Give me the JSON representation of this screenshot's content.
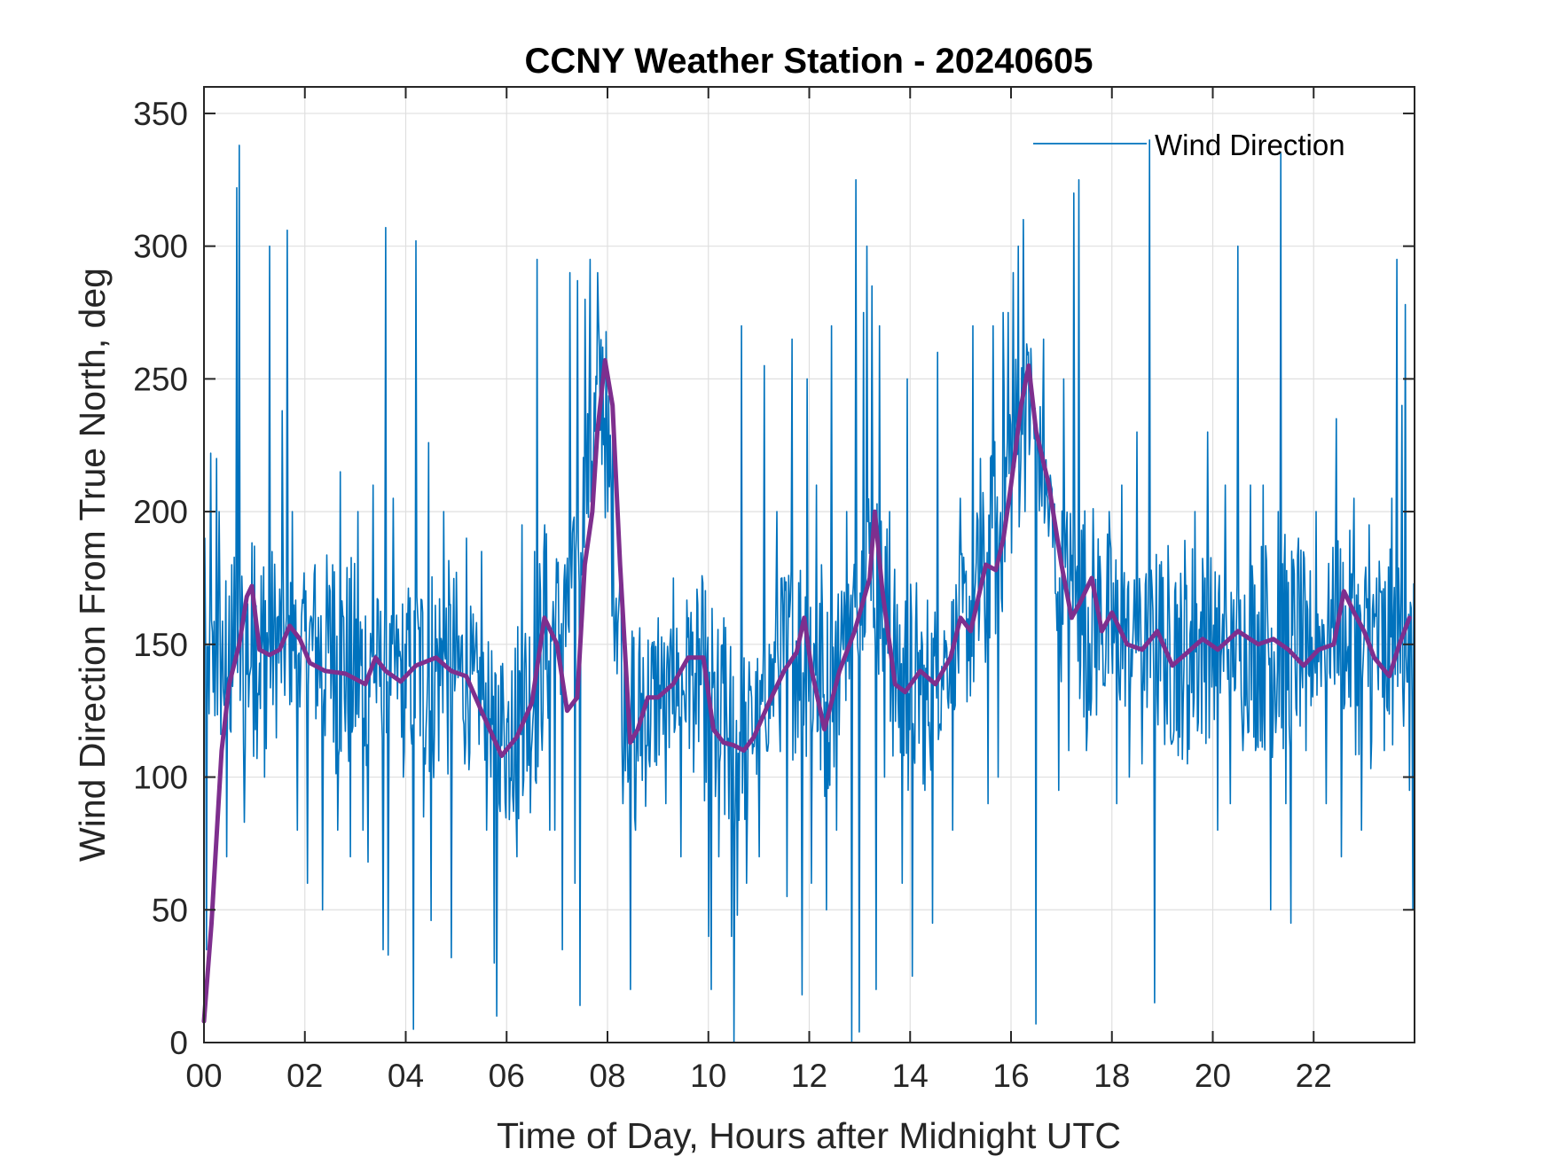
{
  "chart_data": {
    "type": "line",
    "title": "CCNY Weather Station - 20240605",
    "xlabel": "Time of Day, Hours after Midnight UTC",
    "ylabel": "Wind Direction From True North, deg",
    "xlim": [
      0,
      24
    ],
    "ylim": [
      0,
      360
    ],
    "xticks": [
      0,
      2,
      4,
      6,
      8,
      10,
      12,
      14,
      16,
      18,
      20,
      22
    ],
    "xtick_labels": [
      "00",
      "02",
      "04",
      "06",
      "08",
      "10",
      "12",
      "14",
      "16",
      "18",
      "20",
      "22"
    ],
    "yticks": [
      0,
      50,
      100,
      150,
      200,
      250,
      300,
      350
    ],
    "ytick_labels": [
      "0",
      "50",
      "100",
      "150",
      "200",
      "250",
      "300",
      "350"
    ],
    "grid": true,
    "legend": {
      "entries": [
        "Wind Direction"
      ],
      "location": "top-right"
    },
    "colors": {
      "raw": "#0072BD",
      "smoothed": "#7E2F8E",
      "axes": "#262626",
      "grid": "#DFDFDF"
    },
    "series": [
      {
        "name": "Wind Direction",
        "approximate": true,
        "baseline": [
          [
            0,
            140
          ],
          [
            0.7,
            145
          ],
          [
            1.0,
            150
          ],
          [
            2.0,
            150
          ],
          [
            3.0,
            140
          ],
          [
            4.0,
            140
          ],
          [
            5.0,
            140
          ],
          [
            5.5,
            130
          ],
          [
            6.0,
            115
          ],
          [
            6.5,
            130
          ],
          [
            6.8,
            155
          ],
          [
            7.2,
            155
          ],
          [
            7.5,
            200
          ],
          [
            7.9,
            250
          ],
          [
            8.2,
            170
          ],
          [
            8.5,
            120
          ],
          [
            9.0,
            130
          ],
          [
            9.8,
            140
          ],
          [
            10.2,
            115
          ],
          [
            10.8,
            115
          ],
          [
            11.5,
            145
          ],
          [
            12.0,
            150
          ],
          [
            12.3,
            125
          ],
          [
            12.8,
            155
          ],
          [
            13.2,
            185
          ],
          [
            13.8,
            135
          ],
          [
            14.5,
            135
          ],
          [
            15.0,
            155
          ],
          [
            15.5,
            170
          ],
          [
            16.0,
            220
          ],
          [
            16.4,
            240
          ],
          [
            17.0,
            170
          ],
          [
            18.0,
            155
          ],
          [
            19.0,
            150
          ],
          [
            20.0,
            150
          ],
          [
            21.0,
            150
          ],
          [
            22.0,
            150
          ],
          [
            22.5,
            160
          ],
          [
            23.0,
            145
          ],
          [
            24.0,
            150
          ]
        ],
        "spikes": [
          [
            0.02,
            190
          ],
          [
            0.05,
            35
          ],
          [
            0.13,
            222
          ],
          [
            0.25,
            220
          ],
          [
            0.3,
            200
          ],
          [
            0.45,
            70
          ],
          [
            0.55,
            180
          ],
          [
            0.65,
            322
          ],
          [
            0.7,
            338
          ],
          [
            0.8,
            83
          ],
          [
            1.0,
            187
          ],
          [
            1.2,
            100
          ],
          [
            1.3,
            300
          ],
          [
            1.55,
            238
          ],
          [
            1.65,
            306
          ],
          [
            1.75,
            200
          ],
          [
            1.85,
            80
          ],
          [
            2.05,
            60
          ],
          [
            2.2,
            180
          ],
          [
            2.35,
            50
          ],
          [
            2.55,
            180
          ],
          [
            2.65,
            80
          ],
          [
            2.7,
            215
          ],
          [
            2.9,
            70
          ],
          [
            3.05,
            200
          ],
          [
            3.15,
            80
          ],
          [
            3.25,
            68
          ],
          [
            3.35,
            210
          ],
          [
            3.55,
            35
          ],
          [
            3.6,
            307
          ],
          [
            3.65,
            33
          ],
          [
            3.75,
            205
          ],
          [
            3.95,
            100
          ],
          [
            4.15,
            5
          ],
          [
            4.2,
            302
          ],
          [
            4.35,
            85
          ],
          [
            4.45,
            226
          ],
          [
            4.5,
            46
          ],
          [
            4.75,
            200
          ],
          [
            4.9,
            32
          ],
          [
            5.2,
            190
          ],
          [
            5.35,
            140
          ],
          [
            5.5,
            185
          ],
          [
            5.6,
            80
          ],
          [
            5.75,
            30
          ],
          [
            5.8,
            10
          ],
          [
            5.95,
            115
          ],
          [
            6.1,
            140
          ],
          [
            6.2,
            70
          ],
          [
            6.3,
            195
          ],
          [
            6.55,
            185
          ],
          [
            6.6,
            295
          ],
          [
            6.75,
            195
          ],
          [
            6.85,
            80
          ],
          [
            6.95,
            80
          ],
          [
            7.1,
            35
          ],
          [
            7.15,
            180
          ],
          [
            7.25,
            290
          ],
          [
            7.35,
            60
          ],
          [
            7.4,
            287
          ],
          [
            7.45,
            14
          ],
          [
            7.55,
            280
          ],
          [
            7.65,
            295
          ],
          [
            7.8,
            290
          ],
          [
            7.9,
            262
          ],
          [
            8.0,
            200
          ],
          [
            8.15,
            160
          ],
          [
            8.3,
            90
          ],
          [
            8.45,
            20
          ],
          [
            8.55,
            80
          ],
          [
            8.7,
            145
          ],
          [
            8.85,
            120
          ],
          [
            9.0,
            160
          ],
          [
            9.15,
            90
          ],
          [
            9.3,
            175
          ],
          [
            9.45,
            70
          ],
          [
            9.6,
            160
          ],
          [
            9.75,
            120
          ],
          [
            9.9,
            140
          ],
          [
            10.0,
            40
          ],
          [
            10.05,
            20
          ],
          [
            10.2,
            70
          ],
          [
            10.3,
            160
          ],
          [
            10.45,
            40
          ],
          [
            10.5,
            0
          ],
          [
            10.58,
            48
          ],
          [
            10.65,
            270
          ],
          [
            10.75,
            60
          ],
          [
            10.85,
            130
          ],
          [
            11.0,
            70
          ],
          [
            11.1,
            255
          ],
          [
            11.2,
            150
          ],
          [
            11.35,
            200
          ],
          [
            11.45,
            175
          ],
          [
            11.55,
            55
          ],
          [
            11.65,
            265
          ],
          [
            11.75,
            140
          ],
          [
            11.85,
            18
          ],
          [
            11.95,
            250
          ],
          [
            12.05,
            60
          ],
          [
            12.15,
            210
          ],
          [
            12.25,
            180
          ],
          [
            12.35,
            50
          ],
          [
            12.45,
            270
          ],
          [
            12.55,
            80
          ],
          [
            12.65,
            170
          ],
          [
            12.75,
            200
          ],
          [
            12.85,
            0
          ],
          [
            12.92,
            325
          ],
          [
            13.0,
            4
          ],
          [
            13.08,
            275
          ],
          [
            13.15,
            300
          ],
          [
            13.25,
            285
          ],
          [
            13.33,
            20
          ],
          [
            13.4,
            270
          ],
          [
            13.5,
            100
          ],
          [
            13.6,
            200
          ],
          [
            13.75,
            165
          ],
          [
            13.85,
            60
          ],
          [
            13.95,
            250
          ],
          [
            14.05,
            25
          ],
          [
            14.15,
            140
          ],
          [
            14.3,
            95
          ],
          [
            14.45,
            45
          ],
          [
            14.55,
            260
          ],
          [
            14.7,
            145
          ],
          [
            14.85,
            80
          ],
          [
            15.0,
            205
          ],
          [
            15.1,
            175
          ],
          [
            15.25,
            270
          ],
          [
            15.4,
            220
          ],
          [
            15.55,
            90
          ],
          [
            15.65,
            270
          ],
          [
            15.75,
            100
          ],
          [
            15.85,
            275
          ],
          [
            15.95,
            275
          ],
          [
            16.05,
            290
          ],
          [
            16.15,
            300
          ],
          [
            16.25,
            310
          ],
          [
            16.35,
            260
          ],
          [
            16.5,
            7
          ],
          [
            16.65,
            265
          ],
          [
            16.8,
            210
          ],
          [
            16.95,
            95
          ],
          [
            17.05,
            250
          ],
          [
            17.15,
            110
          ],
          [
            17.25,
            320
          ],
          [
            17.35,
            325
          ],
          [
            17.5,
            110
          ],
          [
            17.65,
            175
          ],
          [
            17.8,
            150
          ],
          [
            17.95,
            200
          ],
          [
            18.1,
            90
          ],
          [
            18.2,
            210
          ],
          [
            18.35,
            100
          ],
          [
            18.5,
            230
          ],
          [
            18.6,
            105
          ],
          [
            18.75,
            340
          ],
          [
            18.85,
            15
          ],
          [
            18.95,
            180
          ],
          [
            19.1,
            120
          ],
          [
            19.25,
            170
          ],
          [
            19.35,
            115
          ],
          [
            19.5,
            105
          ],
          [
            19.65,
            200
          ],
          [
            19.85,
            175
          ],
          [
            19.9,
            230
          ],
          [
            20.1,
            80
          ],
          [
            20.25,
            210
          ],
          [
            20.35,
            90
          ],
          [
            20.5,
            300
          ],
          [
            20.6,
            110
          ],
          [
            20.75,
            210
          ],
          [
            20.85,
            110
          ],
          [
            21.0,
            210
          ],
          [
            21.15,
            50
          ],
          [
            21.3,
            200
          ],
          [
            21.35,
            335
          ],
          [
            21.45,
            90
          ],
          [
            21.55,
            45
          ],
          [
            21.7,
            190
          ],
          [
            21.85,
            110
          ],
          [
            22.05,
            200
          ],
          [
            22.25,
            90
          ],
          [
            22.45,
            235
          ],
          [
            22.55,
            70
          ],
          [
            22.65,
            140
          ],
          [
            22.8,
            205
          ],
          [
            22.95,
            80
          ],
          [
            23.1,
            195
          ],
          [
            23.25,
            175
          ],
          [
            23.4,
            110
          ],
          [
            23.55,
            205
          ],
          [
            23.65,
            295
          ],
          [
            23.75,
            240
          ],
          [
            23.82,
            278
          ],
          [
            23.9,
            95
          ],
          [
            23.97,
            50
          ]
        ]
      },
      {
        "approximate": true,
        "x": [
          0,
          0.15,
          0.35,
          0.5,
          0.7,
          0.85,
          0.95,
          1.1,
          1.3,
          1.5,
          1.7,
          1.9,
          2.1,
          2.4,
          2.8,
          3.2,
          3.4,
          3.6,
          3.9,
          4.2,
          4.6,
          4.9,
          5.2,
          5.5,
          5.9,
          6.2,
          6.5,
          6.75,
          7.0,
          7.2,
          7.4,
          7.55,
          7.7,
          7.8,
          7.95,
          8.1,
          8.25,
          8.45,
          8.6,
          8.8,
          9.0,
          9.3,
          9.6,
          9.9,
          10.1,
          10.3,
          10.5,
          10.7,
          10.9,
          11.2,
          11.5,
          11.75,
          11.9,
          12.05,
          12.3,
          12.6,
          12.9,
          13.2,
          13.3,
          13.45,
          13.7,
          13.9,
          14.2,
          14.5,
          14.8,
          15.0,
          15.2,
          15.5,
          15.7,
          15.85,
          16.0,
          16.2,
          16.35,
          16.5,
          16.75,
          17.0,
          17.2,
          17.35,
          17.6,
          17.8,
          18.0,
          18.3,
          18.6,
          18.9,
          19.2,
          19.5,
          19.8,
          20.1,
          20.5,
          20.9,
          21.2,
          21.5,
          21.8,
          22.1,
          22.4,
          22.6,
          22.8,
          23.0,
          23.2,
          23.5,
          23.7,
          23.9
        ],
        "y": [
          8,
          45,
          110,
          135,
          150,
          168,
          172,
          148,
          146,
          148,
          157,
          152,
          143,
          140,
          139,
          135,
          145,
          140,
          136,
          142,
          145,
          140,
          138,
          125,
          108,
          115,
          128,
          160,
          150,
          125,
          130,
          180,
          200,
          230,
          257,
          240,
          180,
          113,
          118,
          130,
          130,
          135,
          145,
          145,
          118,
          113,
          112,
          110,
          115,
          128,
          140,
          147,
          160,
          140,
          118,
          140,
          155,
          175,
          200,
          170,
          135,
          132,
          140,
          135,
          145,
          160,
          155,
          180,
          178,
          190,
          210,
          240,
          255,
          230,
          210,
          180,
          160,
          165,
          175,
          155,
          162,
          150,
          148,
          155,
          142,
          147,
          152,
          148,
          155,
          150,
          152,
          148,
          142,
          148,
          150,
          170,
          162,
          155,
          145,
          138,
          150,
          160
        ]
      }
    ]
  }
}
